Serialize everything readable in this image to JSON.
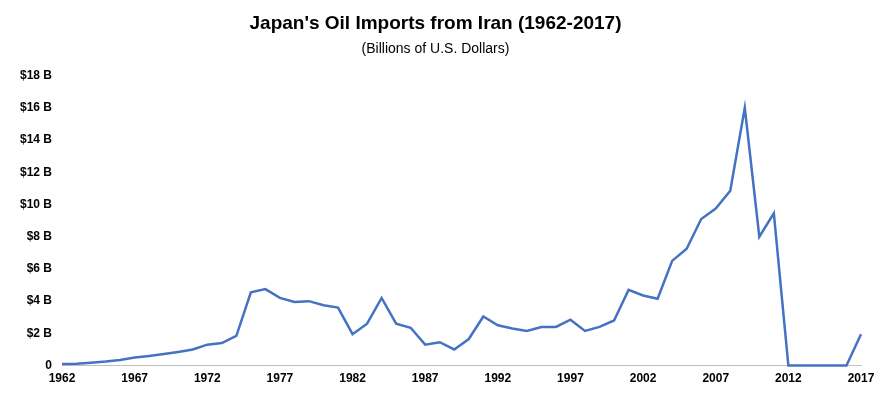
{
  "chart_data": {
    "type": "line",
    "title": "Japan's Oil Imports from Iran (1962-2017)",
    "subtitle": "(Billions of U.S. Dollars)",
    "x": [
      1962,
      1963,
      1964,
      1965,
      1966,
      1967,
      1968,
      1969,
      1970,
      1971,
      1972,
      1973,
      1974,
      1975,
      1976,
      1977,
      1978,
      1979,
      1980,
      1981,
      1982,
      1983,
      1984,
      1985,
      1986,
      1987,
      1988,
      1989,
      1990,
      1991,
      1992,
      1993,
      1994,
      1995,
      1996,
      1997,
      1998,
      1999,
      2000,
      2001,
      2002,
      2003,
      2004,
      2005,
      2006,
      2007,
      2008,
      2009,
      2010,
      2011,
      2012,
      2013,
      2014,
      2015,
      2016,
      2017
    ],
    "values": [
      0.1,
      0.12,
      0.18,
      0.25,
      0.35,
      0.5,
      0.6,
      0.72,
      0.85,
      1.0,
      1.3,
      1.4,
      1.85,
      4.55,
      4.75,
      4.2,
      3.95,
      4.0,
      3.75,
      3.6,
      1.95,
      2.6,
      4.2,
      2.6,
      2.35,
      1.3,
      1.45,
      1.0,
      1.65,
      3.05,
      2.5,
      2.3,
      2.15,
      2.4,
      2.4,
      2.85,
      2.15,
      2.4,
      2.8,
      4.7,
      4.35,
      4.15,
      6.5,
      7.25,
      9.1,
      9.75,
      10.85,
      16.0,
      8.0,
      9.45,
      0,
      0,
      0,
      0,
      0,
      1.95
    ],
    "color": "#4472c4",
    "xlim": [
      1962,
      2017
    ],
    "xticks": [
      1962,
      1967,
      1972,
      1977,
      1982,
      1987,
      1992,
      1997,
      2002,
      2007,
      2012,
      2017
    ],
    "ylim": [
      0,
      18
    ],
    "yticks": [
      0,
      {
        "value": 2,
        "label": "$2 B"
      },
      {
        "value": 4,
        "label": "$4 B"
      },
      {
        "value": 6,
        "label": "$6 B"
      },
      {
        "value": 8,
        "label": "$8 B"
      },
      {
        "value": 10,
        "label": "$10 B"
      },
      {
        "value": 12,
        "label": "$12 B"
      },
      {
        "value": 14,
        "label": "$14 B"
      },
      {
        "value": 16,
        "label": "$16 B"
      },
      {
        "value": 18,
        "label": "$18 B"
      }
    ],
    "grid": false
  }
}
